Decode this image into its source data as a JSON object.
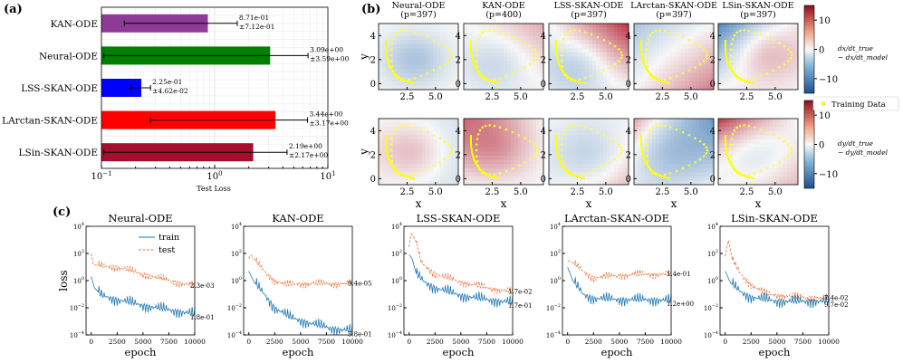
{
  "panel_labels": {
    "a": "(a)",
    "b": "(b)",
    "c": "(c)"
  },
  "chart_data": [
    {
      "id": "a",
      "type": "bar",
      "orientation": "horizontal",
      "xscale": "log",
      "xlim": [
        0.1,
        10
      ],
      "xlabel": "Test Loss",
      "xticks": [
        "10^-1",
        "10^0",
        "10^1"
      ],
      "categories": [
        "KAN-ODE",
        "Neural-ODE",
        "LSS-SKAN-ODE",
        "LArctan-SKAN-ODE",
        "LSin-SKAN-ODE"
      ],
      "values": [
        0.871,
        3.09,
        0.225,
        3.44,
        2.19
      ],
      "errors": [
        0.712,
        3.59,
        0.0462,
        3.17,
        2.17
      ],
      "value_labels": [
        "8.71e-01",
        "3.09e+00",
        "2.25e-01",
        "3.44e+00",
        "2.19e+00"
      ],
      "error_labels": [
        "±7.12e-01",
        "±3.59e+00",
        "±4.62e-02",
        "±3.17e+00",
        "±2.17e+00"
      ],
      "colors": [
        "#8e3a97",
        "#008000",
        "#0000ff",
        "#ff0000",
        "#a50f2d"
      ],
      "grid": true
    },
    {
      "id": "b",
      "type": "heatmap",
      "columns": [
        "Neural-ODE\n(p=397)",
        "KAN-ODE\n(p=400)",
        "LSS-SKAN-ODE\n(p=397)",
        "LArctan-SKAN-ODE\n(p=397)",
        "LSin-SKAN-ODE\n(p=397)"
      ],
      "rows": [
        {
          "ylabel": "y",
          "colorbar_label": "dx/dt_true − dx/dt_model"
        },
        {
          "ylabel": "y",
          "colorbar_label": "dy/dt_true − dy/dt_model"
        }
      ],
      "xlabel": "x",
      "xticks": [
        "2.5",
        "5.0"
      ],
      "yticks": [
        "0",
        "2",
        "4"
      ],
      "colorbar_ticks": [
        "10",
        "0",
        "−10"
      ],
      "colorbar_range": [
        -15,
        15
      ],
      "legend": "Training Data",
      "colormap": [
        "#2166ac",
        "#f7f7f7",
        "#b2182b"
      ]
    },
    {
      "id": "c",
      "type": "line",
      "yscale": "log",
      "ylim": [
        0.0001,
        10000
      ],
      "xlim": [
        -500,
        10000
      ],
      "xlabel": "epoch",
      "ylabel": "loss",
      "xticks": [
        "0",
        "2500",
        "5000",
        "7500",
        "10000"
      ],
      "yticks": [
        "10^4",
        "10^2",
        "10^0",
        "10^-2",
        "10^-4"
      ],
      "legend": [
        "train",
        "test"
      ],
      "series_colors": {
        "train": "#1f77b4",
        "test": "#e8743b"
      },
      "panels": [
        {
          "title": "Neural-ODE",
          "final_test": "2.3e-03",
          "final_train": "1.8e-01",
          "train": [
            {
              "e": 0,
              "v": 2
            },
            {
              "e": 300,
              "v": 0.3
            },
            {
              "e": 1000,
              "v": 0.08
            },
            {
              "e": 2500,
              "v": 0.04
            },
            {
              "e": 5000,
              "v": 0.015
            },
            {
              "e": 7500,
              "v": 0.007
            },
            {
              "e": 10000,
              "v": 0.0035
            }
          ],
          "test": [
            {
              "e": 0,
              "v": 100
            },
            {
              "e": 200,
              "v": 15
            },
            {
              "e": 1000,
              "v": 12
            },
            {
              "e": 2500,
              "v": 10
            },
            {
              "e": 5000,
              "v": 3
            },
            {
              "e": 7500,
              "v": 1
            },
            {
              "e": 10000,
              "v": 0.4
            }
          ]
        },
        {
          "title": "KAN-ODE",
          "final_test": "9.4e-05",
          "final_train": "5.8e-01",
          "train": [
            {
              "e": 0,
              "v": 5
            },
            {
              "e": 500,
              "v": 0.8
            },
            {
              "e": 1500,
              "v": 0.1
            },
            {
              "e": 2500,
              "v": 0.01
            },
            {
              "e": 4000,
              "v": 0.002
            },
            {
              "e": 6000,
              "v": 0.0007
            },
            {
              "e": 8000,
              "v": 0.0003
            },
            {
              "e": 10000,
              "v": 0.0002
            }
          ],
          "test": [
            {
              "e": 0,
              "v": 40
            },
            {
              "e": 200,
              "v": 80
            },
            {
              "e": 800,
              "v": 20
            },
            {
              "e": 1500,
              "v": 5
            },
            {
              "e": 2500,
              "v": 1
            },
            {
              "e": 3500,
              "v": 0.5
            },
            {
              "e": 5000,
              "v": 0.6
            },
            {
              "e": 7500,
              "v": 0.6
            },
            {
              "e": 10000,
              "v": 0.6
            }
          ]
        },
        {
          "title": "LSS-SKAN-ODE",
          "final_test": "1.7e-02",
          "final_train": "1.7e-01",
          "train": [
            {
              "e": 0,
              "v": 80
            },
            {
              "e": 300,
              "v": 40
            },
            {
              "e": 700,
              "v": 3
            },
            {
              "e": 1500,
              "v": 0.8
            },
            {
              "e": 2500,
              "v": 0.3
            },
            {
              "e": 5000,
              "v": 0.08
            },
            {
              "e": 7500,
              "v": 0.04
            },
            {
              "e": 10000,
              "v": 0.025
            }
          ],
          "test": [
            {
              "e": 0,
              "v": 300
            },
            {
              "e": 200,
              "v": 3000
            },
            {
              "e": 600,
              "v": 1000
            },
            {
              "e": 1200,
              "v": 20
            },
            {
              "e": 2500,
              "v": 3
            },
            {
              "e": 5000,
              "v": 0.8
            },
            {
              "e": 7500,
              "v": 0.3
            },
            {
              "e": 10000,
              "v": 0.15
            }
          ]
        },
        {
          "title": "LArctan-SKAN-ODE",
          "final_test": "1.4e-01",
          "final_train": "1.2e+00",
          "train": [
            {
              "e": 0,
              "v": 10
            },
            {
              "e": 500,
              "v": 1
            },
            {
              "e": 1500,
              "v": 0.1
            },
            {
              "e": 2500,
              "v": 0.05
            },
            {
              "e": 5000,
              "v": 0.04
            },
            {
              "e": 7500,
              "v": 0.04
            },
            {
              "e": 10000,
              "v": 0.035
            }
          ],
          "test": [
            {
              "e": 0,
              "v": 30
            },
            {
              "e": 500,
              "v": 20
            },
            {
              "e": 1500,
              "v": 5
            },
            {
              "e": 2500,
              "v": 1.5
            },
            {
              "e": 5000,
              "v": 2.5
            },
            {
              "e": 7500,
              "v": 3
            },
            {
              "e": 10000,
              "v": 3
            }
          ]
        },
        {
          "title": "LSin-SKAN-ODE",
          "final_test": "7.4e-02",
          "final_train": "9.7e-02",
          "train": [
            {
              "e": 0,
              "v": 5
            },
            {
              "e": 500,
              "v": 0.7
            },
            {
              "e": 1500,
              "v": 0.15
            },
            {
              "e": 2500,
              "v": 0.06
            },
            {
              "e": 5000,
              "v": 0.03
            },
            {
              "e": 7500,
              "v": 0.03
            },
            {
              "e": 10000,
              "v": 0.03
            }
          ],
          "test": [
            {
              "e": 0,
              "v": 60
            },
            {
              "e": 300,
              "v": 1000
            },
            {
              "e": 700,
              "v": 30
            },
            {
              "e": 1500,
              "v": 3
            },
            {
              "e": 2500,
              "v": 0.5
            },
            {
              "e": 4000,
              "v": 0.1
            },
            {
              "e": 7500,
              "v": 0.06
            },
            {
              "e": 10000,
              "v": 0.05
            }
          ]
        }
      ]
    }
  ]
}
